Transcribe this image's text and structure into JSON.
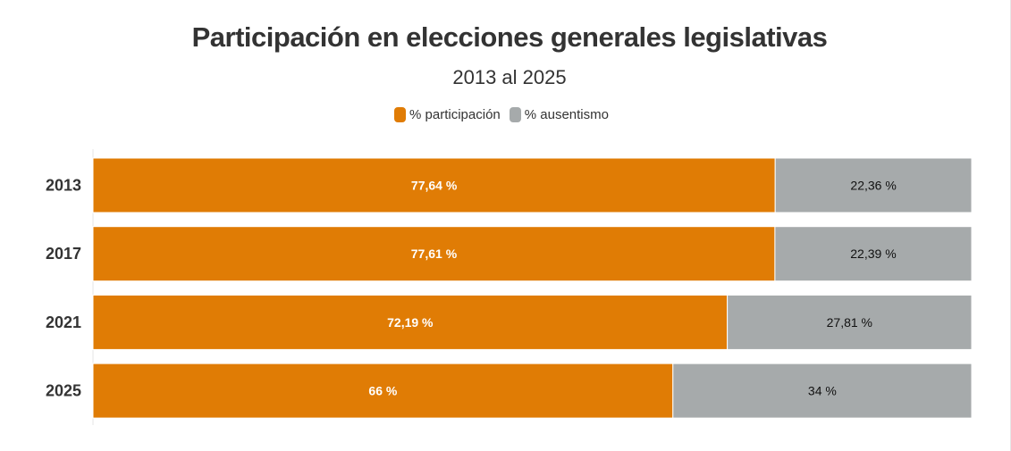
{
  "chart_data": {
    "type": "bar",
    "orientation": "horizontal",
    "stacked": true,
    "title": "Participación en elecciones generales legislativas",
    "subtitle": "2013 al 2025",
    "categories": [
      "2013",
      "2017",
      "2021",
      "2025"
    ],
    "series": [
      {
        "name": "% participación",
        "color": "#e07c05",
        "values": [
          77.64,
          77.61,
          72.19,
          66
        ],
        "labels": [
          "77,64 %",
          "77,61 %",
          "72,19 %",
          "66 %"
        ]
      },
      {
        "name": "% ausentismo",
        "color": "#a6aaab",
        "values": [
          22.36,
          22.39,
          27.81,
          34
        ],
        "labels": [
          "22,36 %",
          "22,39 %",
          "27,81 %",
          "34 %"
        ]
      }
    ],
    "xlim": [
      0,
      100
    ],
    "legend_position": "top-center",
    "grid": false
  }
}
